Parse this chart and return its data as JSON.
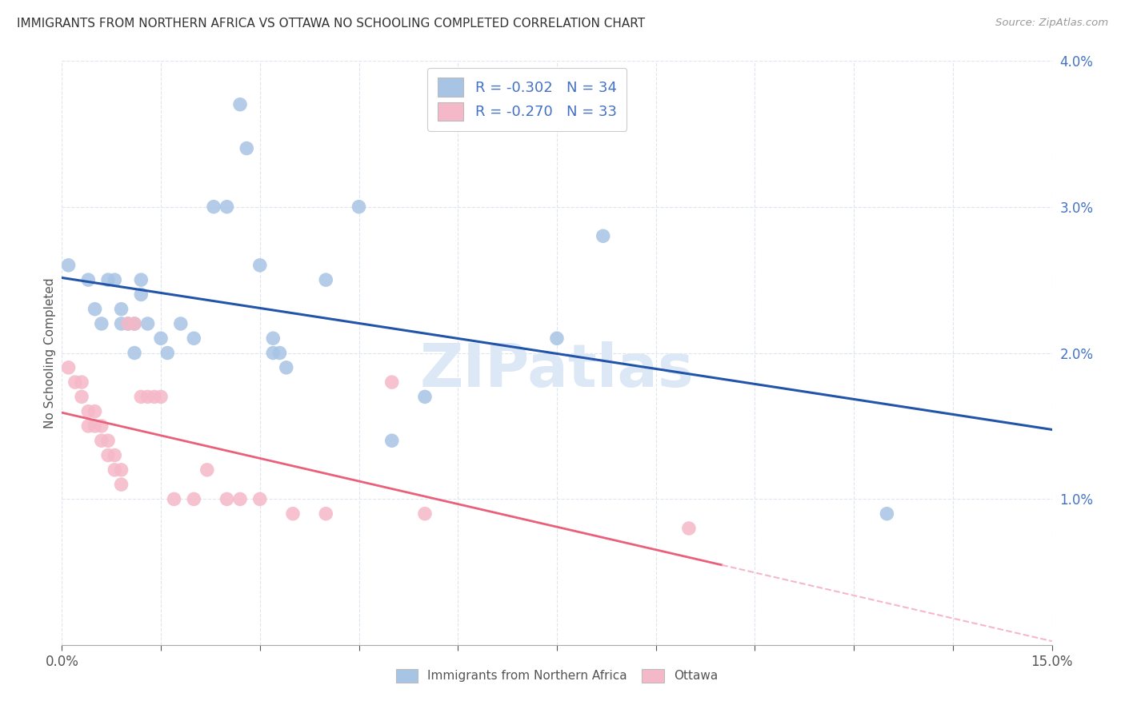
{
  "title": "IMMIGRANTS FROM NORTHERN AFRICA VS OTTAWA NO SCHOOLING COMPLETED CORRELATION CHART",
  "source": "Source: ZipAtlas.com",
  "xlabel_blue": "Immigrants from Northern Africa",
  "xlabel_pink": "Ottawa",
  "ylabel": "No Schooling Completed",
  "xlim": [
    0.0,
    0.15
  ],
  "ylim": [
    0.0,
    0.04
  ],
  "xticks": [
    0.0,
    0.015,
    0.03,
    0.045,
    0.06,
    0.075,
    0.09,
    0.105,
    0.12,
    0.135,
    0.15
  ],
  "yticks": [
    0.0,
    0.01,
    0.02,
    0.03,
    0.04
  ],
  "blue_r": "-0.302",
  "blue_n": "34",
  "pink_r": "-0.270",
  "pink_n": "33",
  "blue_dot_color": "#a8c4e5",
  "blue_line_color": "#2255aa",
  "pink_dot_color": "#f5b8c8",
  "pink_line_color": "#e8607a",
  "pink_dash_color": "#f5b8c8",
  "blue_points": [
    [
      0.001,
      0.026
    ],
    [
      0.004,
      0.025
    ],
    [
      0.005,
      0.023
    ],
    [
      0.006,
      0.022
    ],
    [
      0.007,
      0.025
    ],
    [
      0.008,
      0.025
    ],
    [
      0.009,
      0.023
    ],
    [
      0.009,
      0.022
    ],
    [
      0.01,
      0.022
    ],
    [
      0.011,
      0.02
    ],
    [
      0.011,
      0.022
    ],
    [
      0.012,
      0.025
    ],
    [
      0.012,
      0.024
    ],
    [
      0.013,
      0.022
    ],
    [
      0.015,
      0.021
    ],
    [
      0.016,
      0.02
    ],
    [
      0.018,
      0.022
    ],
    [
      0.02,
      0.021
    ],
    [
      0.023,
      0.03
    ],
    [
      0.025,
      0.03
    ],
    [
      0.027,
      0.037
    ],
    [
      0.028,
      0.034
    ],
    [
      0.03,
      0.026
    ],
    [
      0.032,
      0.021
    ],
    [
      0.032,
      0.02
    ],
    [
      0.033,
      0.02
    ],
    [
      0.034,
      0.019
    ],
    [
      0.04,
      0.025
    ],
    [
      0.045,
      0.03
    ],
    [
      0.05,
      0.014
    ],
    [
      0.055,
      0.017
    ],
    [
      0.075,
      0.021
    ],
    [
      0.082,
      0.028
    ],
    [
      0.125,
      0.009
    ]
  ],
  "pink_points": [
    [
      0.001,
      0.019
    ],
    [
      0.002,
      0.018
    ],
    [
      0.003,
      0.018
    ],
    [
      0.003,
      0.017
    ],
    [
      0.004,
      0.016
    ],
    [
      0.004,
      0.015
    ],
    [
      0.005,
      0.016
    ],
    [
      0.005,
      0.015
    ],
    [
      0.006,
      0.015
    ],
    [
      0.006,
      0.014
    ],
    [
      0.007,
      0.014
    ],
    [
      0.007,
      0.013
    ],
    [
      0.008,
      0.013
    ],
    [
      0.008,
      0.012
    ],
    [
      0.009,
      0.012
    ],
    [
      0.009,
      0.011
    ],
    [
      0.01,
      0.022
    ],
    [
      0.011,
      0.022
    ],
    [
      0.012,
      0.017
    ],
    [
      0.013,
      0.017
    ],
    [
      0.014,
      0.017
    ],
    [
      0.015,
      0.017
    ],
    [
      0.017,
      0.01
    ],
    [
      0.02,
      0.01
    ],
    [
      0.022,
      0.012
    ],
    [
      0.025,
      0.01
    ],
    [
      0.027,
      0.01
    ],
    [
      0.03,
      0.01
    ],
    [
      0.035,
      0.009
    ],
    [
      0.04,
      0.009
    ],
    [
      0.05,
      0.018
    ],
    [
      0.055,
      0.009
    ],
    [
      0.095,
      0.008
    ]
  ],
  "background_color": "#ffffff",
  "grid_color": "#dde5f0",
  "watermark_text": "ZIPatlas",
  "watermark_color": "#dce8f5"
}
